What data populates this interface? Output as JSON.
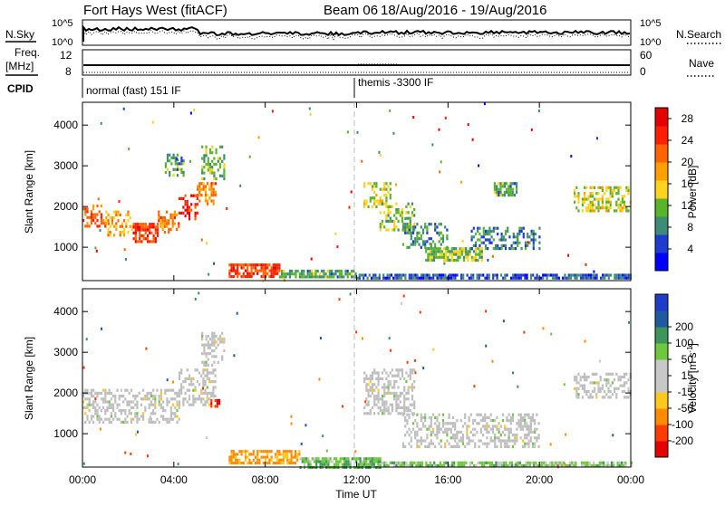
{
  "header": {
    "station": "Fort Hays West (fitACF)",
    "beam": "Beam 06",
    "dates": "18/Aug/2016 - 19/Aug/2016"
  },
  "aux_panels": {
    "nsky_label": "N.Sky",
    "nsearch_label": "N.Search",
    "noise_ticks": [
      "10^5",
      "10^0"
    ],
    "freq_label": "Freq.",
    "freq_unit": "[MHz]",
    "freq_ticks": [
      "12",
      "8"
    ],
    "nave_label": "Nave",
    "nave_ticks": [
      "60",
      "0"
    ],
    "cpid_label": "CPID",
    "cpid_left": "normal (fast) 151 IF",
    "cpid_right": "themis -3300 IF"
  },
  "colors": {
    "power_scale": [
      "#0000ff",
      "#1e3cd2",
      "#3c8c78",
      "#58b428",
      "#ffd21e",
      "#ffa000",
      "#ff6400",
      "#ff1e00",
      "#e60000"
    ],
    "velocity_scale": [
      "#e60000",
      "#ff3c00",
      "#ff8c00",
      "#ffc81e",
      "#c8c8c8",
      "#c8c8c8",
      "#6ec83c",
      "#3c965a",
      "#1e5aa0",
      "#1e3cc8"
    ],
    "ground_scatter": "#bebebe"
  },
  "chart_data": [
    {
      "type": "heatmap",
      "panel": "power",
      "ylabel": "Slant Range [km]",
      "yticks": [
        "1000",
        "2000",
        "3000",
        "4000"
      ],
      "ylim": [
        180,
        4560
      ],
      "xlim": [
        0,
        24
      ],
      "colorbar": {
        "label": "Power [dB]",
        "ticks": [
          "4",
          "8",
          "12",
          "16",
          "20",
          "24",
          "28"
        ],
        "range": [
          0,
          30
        ]
      },
      "echo_regions": [
        {
          "t0": 0.0,
          "t1": 1.0,
          "r0": 1550,
          "r1": 2050,
          "power": 22
        },
        {
          "t0": 1.0,
          "t1": 2.2,
          "r0": 1300,
          "r1": 1900,
          "power": 18
        },
        {
          "t0": 2.2,
          "t1": 3.3,
          "r0": 1150,
          "r1": 1600,
          "power": 24
        },
        {
          "t0": 3.3,
          "t1": 4.2,
          "r0": 1350,
          "r1": 1900,
          "power": 20
        },
        {
          "t0": 4.2,
          "t1": 5.0,
          "r0": 1700,
          "r1": 2300,
          "power": 26
        },
        {
          "t0": 5.0,
          "t1": 5.8,
          "r0": 2100,
          "r1": 2600,
          "power": 20
        },
        {
          "t0": 5.2,
          "t1": 6.2,
          "r0": 2700,
          "r1": 3500,
          "power": 12
        },
        {
          "t0": 3.6,
          "t1": 4.4,
          "r0": 2800,
          "r1": 3300,
          "power": 10
        },
        {
          "t0": 6.4,
          "t1": 8.6,
          "r0": 250,
          "r1": 600,
          "power": 24
        },
        {
          "t0": 8.6,
          "t1": 12.0,
          "r0": 250,
          "r1": 450,
          "power": 10
        },
        {
          "t0": 12.0,
          "t1": 24.0,
          "r0": 250,
          "r1": 350,
          "power": 6
        },
        {
          "t0": 12.3,
          "t1": 13.5,
          "r0": 2000,
          "r1": 2600,
          "power": 14
        },
        {
          "t0": 13.0,
          "t1": 14.5,
          "r0": 1400,
          "r1": 2100,
          "power": 12
        },
        {
          "t0": 14.0,
          "t1": 16.0,
          "r0": 1000,
          "r1": 1600,
          "power": 8
        },
        {
          "t0": 15.0,
          "t1": 17.5,
          "r0": 650,
          "r1": 1000,
          "power": 12
        },
        {
          "t0": 17.0,
          "t1": 20.0,
          "r0": 1000,
          "r1": 1500,
          "power": 8
        },
        {
          "t0": 18.0,
          "t1": 19.0,
          "r0": 2300,
          "r1": 2600,
          "power": 10
        },
        {
          "t0": 21.5,
          "t1": 24.0,
          "r0": 1900,
          "r1": 2500,
          "power": 14
        }
      ]
    },
    {
      "type": "heatmap",
      "panel": "velocity",
      "ylabel": "Slant Range [km]",
      "yticks": [
        "1000",
        "2000",
        "3000",
        "4000"
      ],
      "ylim": [
        180,
        4560
      ],
      "xlim": [
        0,
        24
      ],
      "xlabel": "Time UT",
      "xticks": [
        "00:00",
        "04:00",
        "08:00",
        "12:00",
        "16:00",
        "20:00",
        "00:00"
      ],
      "colorbar": {
        "label": "Velocity [m s",
        "label_exp": "-1",
        "label_close": "]",
        "ticks": [
          "-200",
          "-100",
          "-50",
          "-15",
          "15",
          "50",
          "100",
          "200"
        ],
        "range": [
          -250,
          250
        ]
      },
      "echo_regions": [
        {
          "t0": 0.0,
          "t1": 4.2,
          "r0": 1300,
          "r1": 2100,
          "velocity": 0
        },
        {
          "t0": 4.2,
          "t1": 5.8,
          "r0": 1700,
          "r1": 2600,
          "velocity": 0
        },
        {
          "t0": 5.2,
          "t1": 6.2,
          "r0": 2700,
          "r1": 3500,
          "velocity": 0
        },
        {
          "t0": 6.4,
          "t1": 9.5,
          "r0": 250,
          "r1": 600,
          "velocity": -60
        },
        {
          "t0": 9.5,
          "t1": 13.0,
          "r0": 200,
          "r1": 420,
          "velocity": 40
        },
        {
          "t0": 13.0,
          "t1": 24.0,
          "r0": 200,
          "r1": 320,
          "velocity": 30
        },
        {
          "t0": 5.6,
          "t1": 6.0,
          "r0": 1650,
          "r1": 1850,
          "velocity": -200
        },
        {
          "t0": 12.3,
          "t1": 14.5,
          "r0": 1500,
          "r1": 2600,
          "velocity": 0
        },
        {
          "t0": 14.0,
          "t1": 20.0,
          "r0": 650,
          "r1": 1500,
          "velocity": 0
        },
        {
          "t0": 21.5,
          "t1": 24.0,
          "r0": 1900,
          "r1": 2500,
          "velocity": 0
        }
      ]
    }
  ]
}
